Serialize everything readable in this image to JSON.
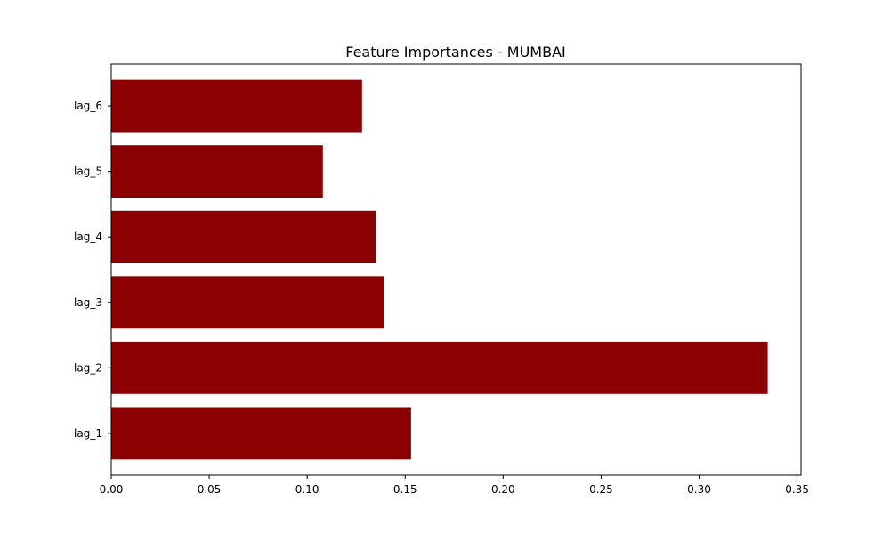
{
  "chart_data": {
    "type": "bar",
    "orientation": "horizontal",
    "title": "Feature Importances - MUMBAI",
    "xlabel": "",
    "ylabel": "",
    "categories": [
      "lag_1",
      "lag_2",
      "lag_3",
      "lag_4",
      "lag_5",
      "lag_6"
    ],
    "values": [
      0.153,
      0.335,
      0.139,
      0.135,
      0.108,
      0.128
    ],
    "xlim": [
      0.0,
      0.352
    ],
    "xticks": [
      "0.00",
      "0.05",
      "0.10",
      "0.15",
      "0.20",
      "0.25",
      "0.30",
      "0.35"
    ],
    "grid": false,
    "legend": "none",
    "bar_color": "#8b0000"
  }
}
